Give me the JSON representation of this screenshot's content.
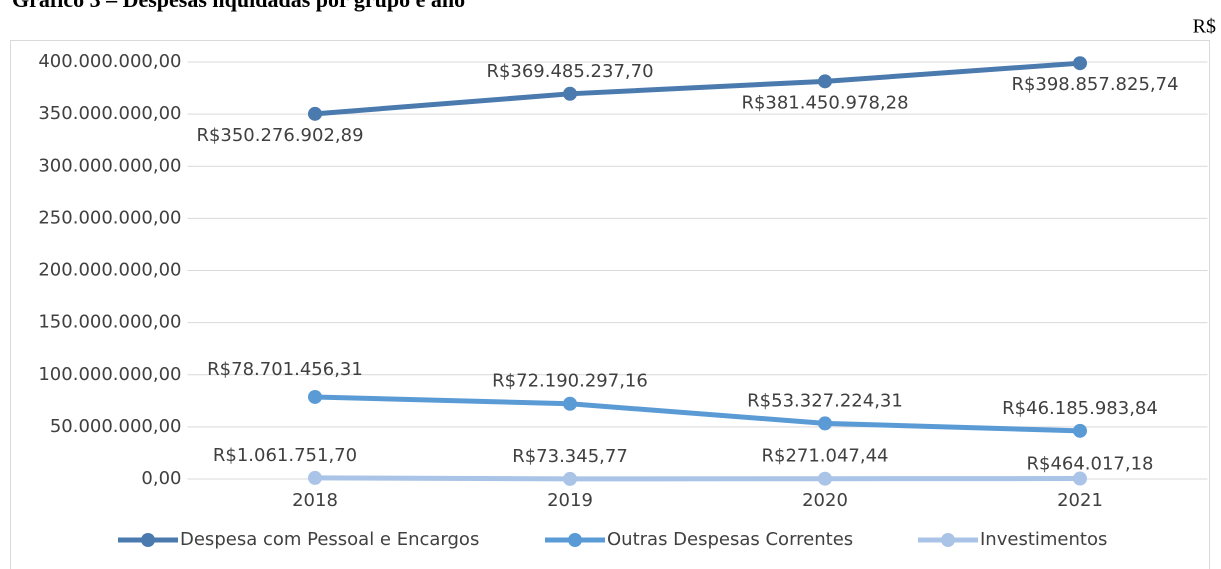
{
  "chart_data": {
    "type": "line",
    "title": "Gráfico 3 – Despesas liquidadas por grupo e ano",
    "unit_label": "R$",
    "categories": [
      "2018",
      "2019",
      "2020",
      "2021"
    ],
    "series": [
      {
        "name": "Despesa com Pessoal e Encargos",
        "color": "#4a7aae",
        "values": [
          350276902.89,
          369485237.7,
          381450978.28,
          398857825.74
        ],
        "value_labels": [
          "R$350.276.902,89",
          "R$369.485.237,70",
          "R$381.450.978,28",
          "R$398.857.825,74"
        ]
      },
      {
        "name": "Outras Despesas Correntes",
        "color": "#5b9bd5",
        "values": [
          78701456.31,
          72190297.16,
          53327224.31,
          46185983.84
        ],
        "value_labels": [
          "R$78.701.456,31",
          "R$72.190.297,16",
          "R$53.327.224,31",
          "R$46.185.983,84"
        ]
      },
      {
        "name": "Investimentos",
        "color": "#a9c4e6",
        "values": [
          1061751.7,
          73345.77,
          271047.44,
          464017.18
        ],
        "value_labels": [
          "R$1.061.751,70",
          "R$73.345,77",
          "R$271.047,44",
          "R$464.017,18"
        ]
      }
    ],
    "ylim": [
      0,
      400000000
    ],
    "yticks": [
      {
        "value": 0,
        "label": "0,00"
      },
      {
        "value": 50000000,
        "label": "50.000.000,00"
      },
      {
        "value": 100000000,
        "label": "100.000.000,00"
      },
      {
        "value": 150000000,
        "label": "150.000.000,00"
      },
      {
        "value": 200000000,
        "label": "200.000.000,00"
      },
      {
        "value": 250000000,
        "label": "250.000.000,00"
      },
      {
        "value": 300000000,
        "label": "300.000.000,00"
      },
      {
        "value": 350000000,
        "label": "350.000.000,00"
      },
      {
        "value": 400000000,
        "label": "400.000.000,00"
      }
    ],
    "grid": true,
    "legend": "bottom"
  }
}
